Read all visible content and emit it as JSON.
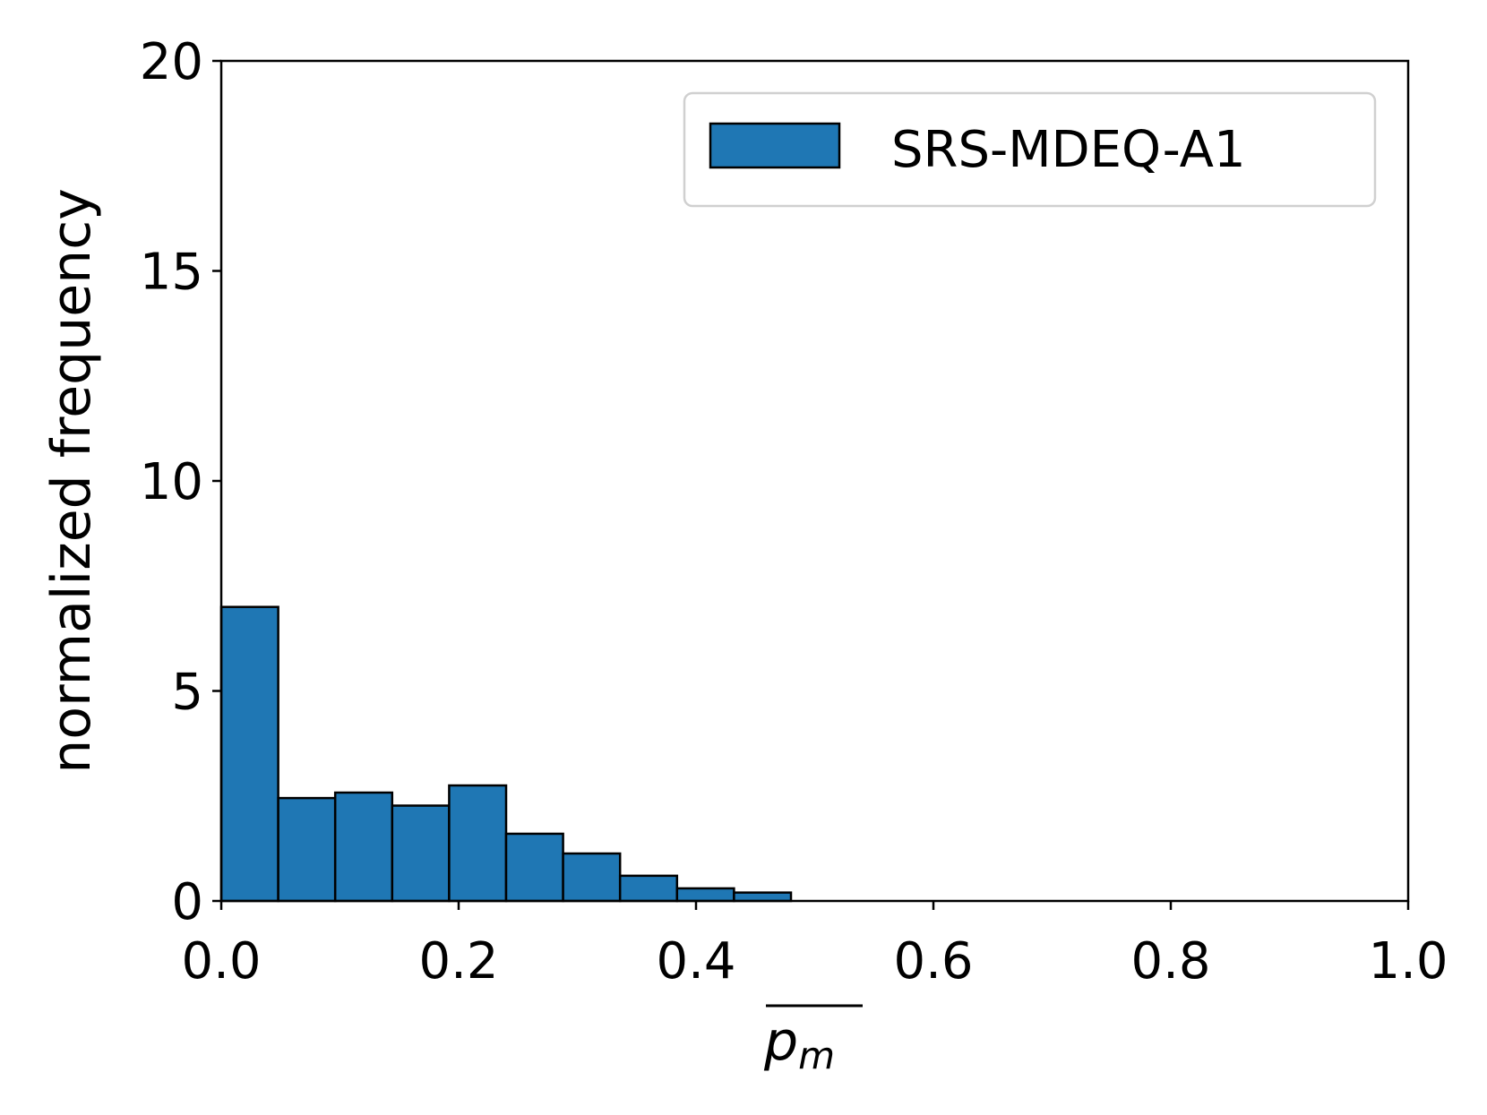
{
  "chart_data": {
    "type": "bar",
    "xlabel_base": "p",
    "xlabel_sub": "m",
    "ylabel": "normalized frequency",
    "xlim": [
      0.0,
      1.0
    ],
    "ylim": [
      0,
      20
    ],
    "xticks": [
      "0.0",
      "0.2",
      "0.4",
      "0.6",
      "0.8",
      "1.0"
    ],
    "yticks": [
      "0",
      "5",
      "10",
      "15",
      "20"
    ],
    "grid": false,
    "legend_position": "top-right",
    "series": [
      {
        "name": "SRS-MDEQ-A1",
        "color": "#1f77b4",
        "bin_edges": [
          0.0,
          0.048,
          0.096,
          0.144,
          0.192,
          0.24,
          0.288,
          0.336,
          0.384,
          0.432,
          0.48
        ],
        "values": [
          7.0,
          2.45,
          2.58,
          2.27,
          2.75,
          1.6,
          1.13,
          0.6,
          0.3,
          0.2
        ]
      }
    ]
  }
}
